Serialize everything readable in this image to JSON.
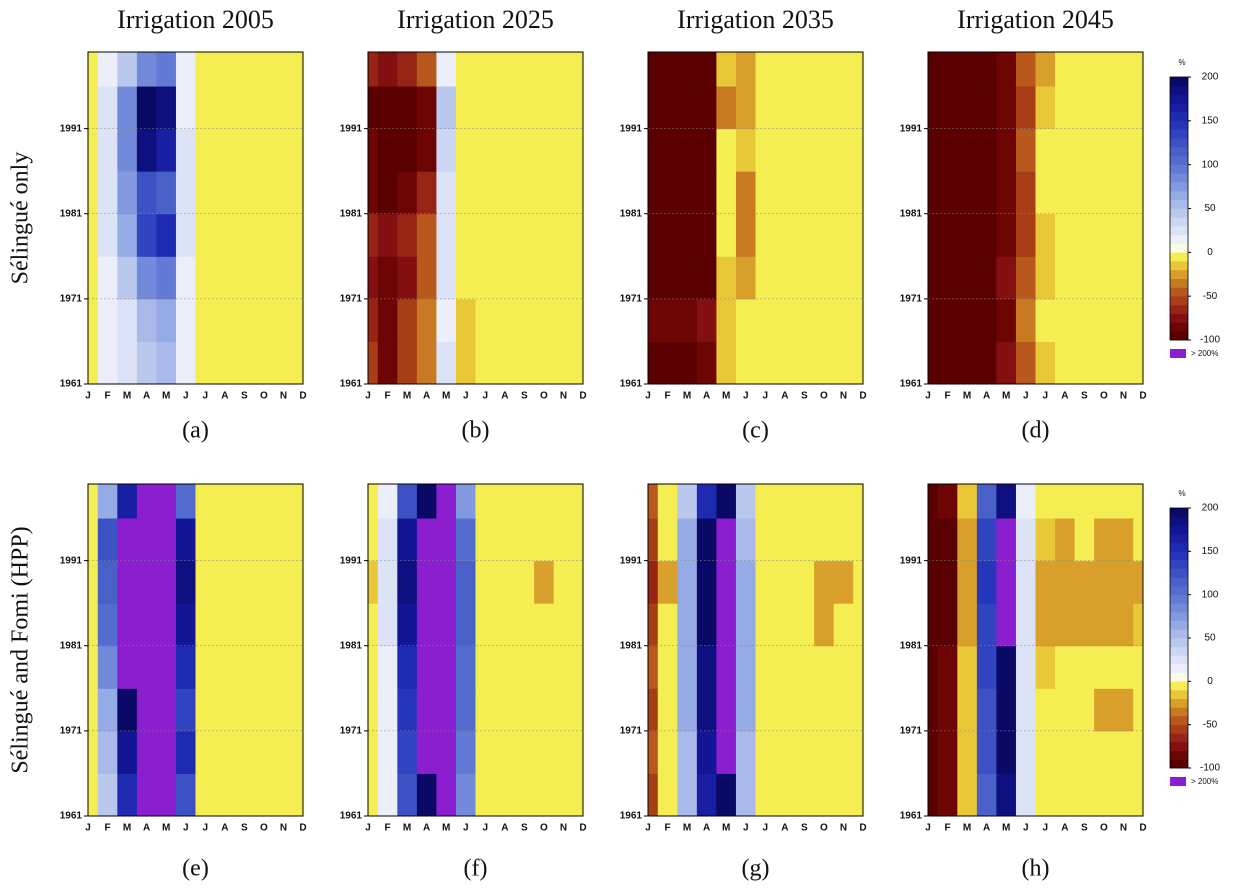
{
  "chart_data": [
    {
      "type": "heatmap",
      "title": "Irrigation 2005",
      "ylabel": "Sélingué only",
      "caption": "(a)",
      "categories": [
        "J",
        "F",
        "M",
        "A",
        "M",
        "J",
        "J",
        "A",
        "S",
        "O",
        "N",
        "D"
      ],
      "y": [
        1961,
        1966,
        1971,
        1976,
        1981,
        1986,
        1991,
        1996
      ],
      "ylim": [
        1961,
        2000
      ],
      "yticks": [
        1961,
        1971,
        1981,
        1991
      ],
      "values": [
        [
          -5,
          10,
          20,
          40,
          50,
          10,
          -5,
          -5,
          -5,
          -5,
          -5,
          -5
        ],
        [
          -5,
          10,
          20,
          50,
          60,
          10,
          -5,
          -5,
          -5,
          -5,
          -5,
          -5
        ],
        [
          -5,
          15,
          40,
          80,
          90,
          15,
          -5,
          -5,
          -5,
          -5,
          -5,
          -5
        ],
        [
          -5,
          20,
          60,
          130,
          150,
          20,
          -5,
          -5,
          -5,
          -5,
          -5,
          -5
        ],
        [
          -5,
          20,
          70,
          120,
          110,
          20,
          -5,
          -5,
          -5,
          -5,
          -5,
          -5
        ],
        [
          -5,
          25,
          80,
          180,
          160,
          20,
          -5,
          -5,
          -2,
          -5,
          -5,
          -5
        ],
        [
          -5,
          25,
          80,
          190,
          185,
          15,
          -5,
          -5,
          -5,
          -5,
          -5,
          -5
        ],
        [
          -5,
          15,
          40,
          80,
          90,
          10,
          -5,
          -5,
          -5,
          -5,
          -5,
          -5
        ]
      ]
    },
    {
      "type": "heatmap",
      "title": "Irrigation 2025",
      "caption": "(b)",
      "categories": [
        "J",
        "F",
        "M",
        "A",
        "M",
        "J",
        "J",
        "A",
        "S",
        "O",
        "N",
        "D"
      ],
      "y": [
        1961,
        1966,
        1971,
        1976,
        1981,
        1986,
        1991,
        1996
      ],
      "ylim": [
        1961,
        2000
      ],
      "yticks": [
        1961,
        1971,
        1981,
        1991
      ],
      "values": [
        [
          -60,
          -90,
          -60,
          -40,
          20,
          -20,
          -5,
          -5,
          -5,
          -5,
          -5,
          -5
        ],
        [
          -70,
          -85,
          -60,
          -40,
          15,
          -15,
          -5,
          -5,
          -5,
          -5,
          -5,
          -5
        ],
        [
          -75,
          -90,
          -75,
          -50,
          20,
          -10,
          -5,
          -5,
          -5,
          -5,
          -5,
          -5
        ],
        [
          -70,
          -80,
          -70,
          -45,
          20,
          -10,
          -5,
          -5,
          -5,
          -5,
          -5,
          -5
        ],
        [
          -85,
          -95,
          -90,
          -70,
          25,
          -10,
          -5,
          -5,
          -5,
          -5,
          -5,
          -5
        ],
        [
          -90,
          -95,
          -95,
          -85,
          30,
          -10,
          -5,
          -5,
          -5,
          -5,
          -5,
          -5
        ],
        [
          -95,
          -95,
          -95,
          -90,
          40,
          -5,
          -5,
          -5,
          -5,
          -5,
          -5,
          -5
        ],
        [
          -70,
          -80,
          -70,
          -45,
          15,
          -10,
          -5,
          -5,
          -5,
          -5,
          -5,
          -5
        ]
      ]
    },
    {
      "type": "heatmap",
      "title": "Irrigation 2035",
      "caption": "(c)",
      "categories": [
        "J",
        "F",
        "M",
        "A",
        "M",
        "J",
        "J",
        "A",
        "S",
        "O",
        "N",
        "D"
      ],
      "y": [
        1961,
        1966,
        1971,
        1976,
        1981,
        1986,
        1991,
        1996
      ],
      "ylim": [
        1961,
        2000
      ],
      "yticks": [
        1961,
        1971,
        1981,
        1991
      ],
      "values": [
        [
          -95,
          -95,
          -95,
          -90,
          -20,
          -10,
          -5,
          -5,
          -5,
          -5,
          -5,
          -5
        ],
        [
          -90,
          -85,
          -90,
          -80,
          -20,
          -10,
          -5,
          -5,
          -5,
          -5,
          -5,
          -5
        ],
        [
          -95,
          -95,
          -95,
          -95,
          -15,
          -30,
          -10,
          -5,
          -5,
          -5,
          -5,
          -5
        ],
        [
          -95,
          -95,
          -95,
          -95,
          -10,
          -40,
          -5,
          -5,
          -5,
          -5,
          -5,
          -5
        ],
        [
          -95,
          -95,
          -95,
          -95,
          -10,
          -35,
          -5,
          -5,
          -5,
          -5,
          -5,
          -5
        ],
        [
          -95,
          -95,
          -95,
          -95,
          -10,
          -20,
          -5,
          -5,
          -5,
          -5,
          -5,
          -5
        ],
        [
          -95,
          -95,
          -95,
          -95,
          -35,
          -30,
          -5,
          -5,
          -5,
          -5,
          -5,
          -5
        ],
        [
          -95,
          -95,
          -95,
          -95,
          -20,
          -25,
          -5,
          -5,
          -5,
          -5,
          -5,
          -5
        ]
      ]
    },
    {
      "type": "heatmap",
      "title": "Irrigation 2045",
      "caption": "(d)",
      "categories": [
        "J",
        "F",
        "M",
        "A",
        "M",
        "J",
        "J",
        "A",
        "S",
        "O",
        "N",
        "D"
      ],
      "y": [
        1961,
        1966,
        1971,
        1976,
        1981,
        1986,
        1991,
        1996
      ],
      "ylim": [
        1961,
        2000
      ],
      "yticks": [
        1961,
        1971,
        1981,
        1991
      ],
      "values": [
        [
          -95,
          -95,
          -95,
          -95,
          -80,
          -45,
          -15,
          -5,
          -5,
          -5,
          -5,
          -5
        ],
        [
          -95,
          -95,
          -95,
          -95,
          -85,
          -40,
          -10,
          -5,
          -5,
          -5,
          -5,
          -5
        ],
        [
          -95,
          -95,
          -95,
          -95,
          -80,
          -50,
          -15,
          -5,
          -5,
          -5,
          -5,
          -5
        ],
        [
          -95,
          -95,
          -95,
          -95,
          -85,
          -55,
          -15,
          -5,
          -5,
          -5,
          -5,
          -5
        ],
        [
          -95,
          -95,
          -95,
          -95,
          -90,
          -55,
          -10,
          -5,
          -5,
          -5,
          -5,
          -5
        ],
        [
          -95,
          -95,
          -95,
          -95,
          -90,
          -50,
          -10,
          -5,
          -5,
          -5,
          -5,
          -5
        ],
        [
          -95,
          -95,
          -95,
          -95,
          -90,
          -55,
          -15,
          -5,
          -5,
          -5,
          -5,
          -5
        ],
        [
          -95,
          -95,
          -95,
          -95,
          -85,
          -50,
          -25,
          -5,
          -5,
          -5,
          -5,
          -5
        ]
      ]
    },
    {
      "type": "heatmap",
      "ylabel": "Sélingué and Fomi (HPP)",
      "caption": "(e)",
      "categories": [
        "J",
        "F",
        "M",
        "A",
        "M",
        "J",
        "J",
        "A",
        "S",
        "O",
        "N",
        "D"
      ],
      "y": [
        1961,
        1966,
        1971,
        1976,
        1981,
        1986,
        1991,
        1996
      ],
      "ylim": [
        1961,
        2000
      ],
      "yticks": [
        1961,
        1971,
        1981,
        1991
      ],
      "values": [
        [
          -5,
          40,
          150,
          220,
          230,
          120,
          -5,
          -5,
          -5,
          -5,
          -5,
          -5
        ],
        [
          -5,
          50,
          170,
          230,
          250,
          150,
          -5,
          -5,
          -5,
          -5,
          -5,
          -5
        ],
        [
          -5,
          60,
          190,
          250,
          220,
          130,
          -5,
          -5,
          -5,
          -5,
          -5,
          -5
        ],
        [
          -5,
          80,
          210,
          250,
          250,
          150,
          -5,
          -5,
          -5,
          -5,
          -5,
          -5
        ],
        [
          -5,
          100,
          230,
          250,
          260,
          170,
          -5,
          -5,
          -5,
          -5,
          -5,
          -5
        ],
        [
          -5,
          110,
          240,
          260,
          260,
          180,
          -5,
          -5,
          -5,
          -5,
          -5,
          -5
        ],
        [
          -5,
          120,
          240,
          260,
          260,
          170,
          -5,
          -5,
          -5,
          -5,
          -5,
          -5
        ],
        [
          -5,
          60,
          160,
          210,
          230,
          100,
          -5,
          -5,
          -5,
          -5,
          -5,
          -5
        ]
      ]
    },
    {
      "type": "heatmap",
      "caption": "(f)",
      "categories": [
        "J",
        "F",
        "M",
        "A",
        "M",
        "J",
        "J",
        "A",
        "S",
        "O",
        "N",
        "D"
      ],
      "y": [
        1961,
        1966,
        1971,
        1976,
        1981,
        1986,
        1991,
        1996
      ],
      "ylim": [
        1961,
        2000
      ],
      "yticks": [
        1961,
        1971,
        1981,
        1991
      ],
      "values": [
        [
          -5,
          10,
          120,
          200,
          210,
          80,
          -5,
          -5,
          -5,
          -5,
          -5,
          -5
        ],
        [
          -5,
          10,
          130,
          210,
          220,
          90,
          -5,
          -5,
          -5,
          -5,
          -5,
          -5
        ],
        [
          -5,
          15,
          140,
          220,
          210,
          100,
          -5,
          -5,
          -5,
          -5,
          -5,
          -5
        ],
        [
          -5,
          15,
          150,
          230,
          230,
          100,
          -5,
          -5,
          -5,
          -5,
          -5,
          -5
        ],
        [
          -5,
          20,
          170,
          240,
          240,
          110,
          -5,
          -5,
          -5,
          -5,
          -5,
          -5
        ],
        [
          -20,
          20,
          180,
          240,
          240,
          110,
          -5,
          -5,
          -5,
          -30,
          -5,
          -5
        ],
        [
          -5,
          20,
          170,
          230,
          240,
          100,
          -5,
          -5,
          -5,
          -5,
          -5,
          -5
        ],
        [
          -5,
          10,
          120,
          190,
          210,
          70,
          -5,
          -5,
          -5,
          -5,
          -5,
          -5
        ]
      ]
    },
    {
      "type": "heatmap",
      "title": null,
      "caption": "(g)",
      "categories": [
        "J",
        "F",
        "M",
        "A",
        "M",
        "J",
        "J",
        "A",
        "S",
        "O",
        "N",
        "D"
      ],
      "y": [
        1961,
        1966,
        1971,
        1976,
        1981,
        1986,
        1991,
        1996
      ],
      "ylim": [
        1961,
        2000
      ],
      "yticks": [
        1961,
        1971,
        1981,
        1991
      ],
      "values": [
        [
          -60,
          -5,
          50,
          160,
          200,
          50,
          -5,
          -5,
          -5,
          -5,
          -5,
          -5
        ],
        [
          -50,
          -5,
          50,
          170,
          210,
          50,
          -5,
          -5,
          -5,
          -5,
          -5,
          -5
        ],
        [
          -60,
          -5,
          60,
          180,
          220,
          60,
          -5,
          -5,
          -5,
          -5,
          -5,
          -5
        ],
        [
          -50,
          -5,
          60,
          180,
          220,
          60,
          -5,
          -5,
          -5,
          -5,
          -5,
          -5
        ],
        [
          -60,
          -10,
          60,
          190,
          230,
          60,
          -5,
          -5,
          -5,
          -30,
          -5,
          -5
        ],
        [
          -70,
          -30,
          60,
          200,
          240,
          60,
          -5,
          -5,
          -5,
          -30,
          -30,
          -5
        ],
        [
          -60,
          -10,
          60,
          190,
          230,
          50,
          -5,
          -5,
          -5,
          -5,
          -5,
          -5
        ],
        [
          -50,
          -5,
          40,
          150,
          190,
          40,
          -5,
          -5,
          -5,
          -5,
          -5,
          -5
        ]
      ]
    },
    {
      "type": "heatmap",
      "caption": "(h)",
      "categories": [
        "J",
        "F",
        "M",
        "A",
        "M",
        "J",
        "J",
        "A",
        "S",
        "O",
        "N",
        "D"
      ],
      "y": [
        1961,
        1966,
        1971,
        1976,
        1981,
        1986,
        1991,
        1996
      ],
      "ylim": [
        1961,
        2000
      ],
      "yticks": [
        1961,
        1971,
        1981,
        1991
      ],
      "values": [
        [
          -95,
          -90,
          -20,
          110,
          180,
          20,
          -10,
          -5,
          -5,
          -5,
          -5,
          -5
        ],
        [
          -95,
          -90,
          -20,
          120,
          190,
          20,
          -10,
          -5,
          -5,
          -5,
          -5,
          -5
        ],
        [
          -95,
          -90,
          -20,
          120,
          190,
          20,
          -10,
          -5,
          -5,
          -30,
          -30,
          -5
        ],
        [
          -95,
          -90,
          -20,
          130,
          200,
          20,
          -15,
          -5,
          -5,
          -5,
          -5,
          -5
        ],
        [
          -95,
          -95,
          -30,
          130,
          210,
          20,
          -30,
          -30,
          -30,
          -30,
          -30,
          -20
        ],
        [
          -95,
          -95,
          -30,
          140,
          220,
          20,
          -30,
          -30,
          -30,
          -30,
          -30,
          -30
        ],
        [
          -95,
          -95,
          -30,
          130,
          210,
          20,
          -20,
          -30,
          -5,
          -30,
          -30,
          -5
        ],
        [
          -95,
          -90,
          -20,
          110,
          180,
          10,
          -10,
          -5,
          -5,
          -5,
          -5,
          -5
        ]
      ]
    }
  ],
  "colorbar": {
    "label": "%",
    "lim": [
      -100,
      200
    ],
    "ticks": [
      -100,
      -50,
      0,
      50,
      100,
      150,
      200
    ],
    "colors": [
      "#5a0000",
      "#6e0505",
      "#821010",
      "#962515",
      "#a83e18",
      "#b8581c",
      "#c87a22",
      "#d8a02a",
      "#e8c836",
      "#f4ee52",
      "#fbfbe6",
      "#eceffa",
      "#dde3f6",
      "#ccd6f2",
      "#bac8ee",
      "#a8b9ea",
      "#96aae6",
      "#849ae0",
      "#728ad9",
      "#627ad3",
      "#546ccd",
      "#4860c8",
      "#3c52c4",
      "#3044c0",
      "#2636ba",
      "#1e2ab0",
      "#181fa2",
      "#121694",
      "#0e1080",
      "#0a0a66"
    ],
    "over_color": "#8b1fd0",
    "over_label": "> 200%"
  }
}
